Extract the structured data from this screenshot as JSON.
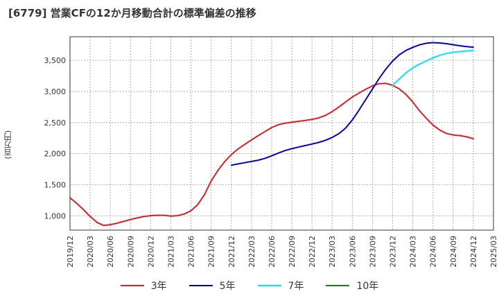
{
  "chart_data": {
    "type": "line",
    "title": "[6779]  営業CFの12か月移動合計の標準偏差の推移",
    "ylabel": "(百万円)",
    "xlabel": "",
    "ylim": [
      770,
      3880
    ],
    "yticks": [
      1000,
      1500,
      2000,
      2500,
      3000,
      3500
    ],
    "ytick_labels": [
      "1,000",
      "1,500",
      "2,000",
      "2,500",
      "3,000",
      "3,500"
    ],
    "x_categories": [
      "2019/12",
      "2020/03",
      "2020/06",
      "2020/09",
      "2020/12",
      "2021/03",
      "2021/06",
      "2021/09",
      "2021/12",
      "2022/03",
      "2022/06",
      "2022/09",
      "2022/12",
      "2023/03",
      "2023/06",
      "2023/09",
      "2023/12",
      "2024/03",
      "2024/06",
      "2024/09",
      "2024/12",
      "2025/03"
    ],
    "grid": true,
    "legend_position": "bottom",
    "series": [
      {
        "name": "3年",
        "color": "#e41a1c",
        "x": [
          "2019/12",
          "2020/01",
          "2020/02",
          "2020/03",
          "2020/04",
          "2020/05",
          "2020/06",
          "2020/07",
          "2020/08",
          "2020/09",
          "2020/10",
          "2020/11",
          "2020/12",
          "2021/01",
          "2021/02",
          "2021/03",
          "2021/04",
          "2021/05",
          "2021/06",
          "2021/07",
          "2021/08",
          "2021/09",
          "2021/10",
          "2021/11",
          "2021/12",
          "2022/01",
          "2022/02",
          "2022/03",
          "2022/04",
          "2022/05",
          "2022/06",
          "2022/07",
          "2022/08",
          "2022/09",
          "2022/10",
          "2022/11",
          "2022/12",
          "2023/01",
          "2023/02",
          "2023/03",
          "2023/04",
          "2023/05",
          "2023/06",
          "2023/07",
          "2023/08",
          "2023/09",
          "2023/10",
          "2023/11",
          "2023/12",
          "2024/01",
          "2024/02",
          "2024/03",
          "2024/04",
          "2024/05",
          "2024/06",
          "2024/07",
          "2024/08",
          "2024/09",
          "2024/10",
          "2024/11",
          "2024/12"
        ],
        "values": [
          1290,
          1200,
          1100,
          990,
          895,
          845,
          858,
          882,
          910,
          940,
          966,
          988,
          1003,
          1010,
          1008,
          995,
          1003,
          1030,
          1082,
          1180,
          1340,
          1560,
          1730,
          1870,
          1985,
          2075,
          2150,
          2220,
          2290,
          2355,
          2420,
          2465,
          2490,
          2505,
          2520,
          2535,
          2550,
          2575,
          2615,
          2675,
          2750,
          2830,
          2910,
          2975,
          3035,
          3090,
          3125,
          3130,
          3100,
          3040,
          2950,
          2830,
          2690,
          2570,
          2460,
          2380,
          2325,
          2300,
          2290,
          2270,
          2240
        ]
      },
      {
        "name": "5年",
        "color": "#0000cc",
        "x": [
          "2021/12",
          "2022/01",
          "2022/02",
          "2022/03",
          "2022/04",
          "2022/05",
          "2022/06",
          "2022/07",
          "2022/08",
          "2022/09",
          "2022/10",
          "2022/11",
          "2022/12",
          "2023/01",
          "2023/02",
          "2023/03",
          "2023/04",
          "2023/05",
          "2023/06",
          "2023/07",
          "2023/08",
          "2023/09",
          "2023/10",
          "2023/11",
          "2023/12",
          "2024/01",
          "2024/02",
          "2024/03",
          "2024/04",
          "2024/05",
          "2024/06",
          "2024/07",
          "2024/08",
          "2024/09",
          "2024/10",
          "2024/11",
          "2024/12"
        ],
        "values": [
          1815,
          1835,
          1855,
          1875,
          1895,
          1925,
          1965,
          2010,
          2050,
          2080,
          2105,
          2130,
          2155,
          2180,
          2215,
          2260,
          2320,
          2410,
          2540,
          2700,
          2870,
          3040,
          3210,
          3360,
          3490,
          3590,
          3660,
          3710,
          3750,
          3775,
          3785,
          3780,
          3768,
          3752,
          3735,
          3722,
          3712
        ]
      },
      {
        "name": "7年",
        "color": "#00e5ff",
        "x": [
          "2023/12",
          "2024/01",
          "2024/02",
          "2024/03",
          "2024/04",
          "2024/05",
          "2024/06",
          "2024/07",
          "2024/08",
          "2024/09",
          "2024/10",
          "2024/11",
          "2024/12"
        ],
        "values": [
          3100,
          3200,
          3300,
          3380,
          3440,
          3490,
          3540,
          3580,
          3610,
          3630,
          3640,
          3650,
          3660
        ]
      },
      {
        "name": "10年",
        "color": "#1a7f1a",
        "x": [],
        "values": []
      }
    ]
  }
}
